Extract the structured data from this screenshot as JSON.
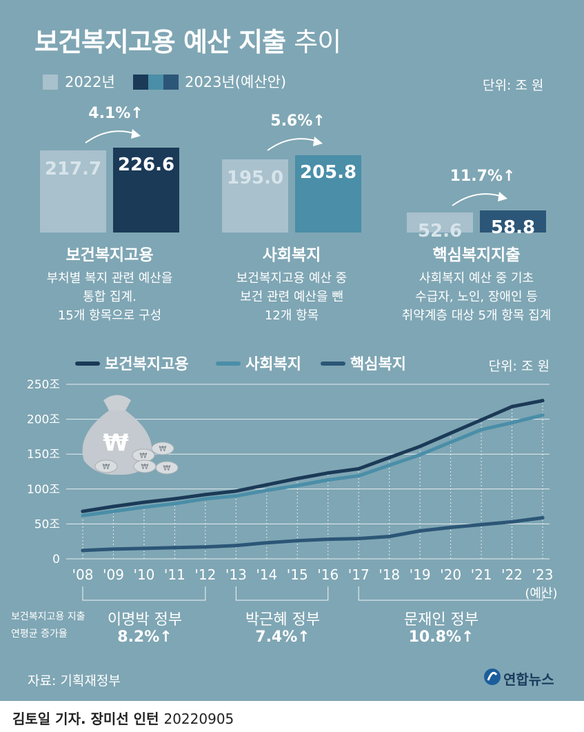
{
  "title": {
    "bold": "보건복지고용 예산 지출",
    "light": "추이"
  },
  "bar_legend": {
    "label_2022": "2022년",
    "label_2023": "2023년(예산안)"
  },
  "bar_unit": "단위: 조 원",
  "colors": {
    "background": "#7fa6b4",
    "bar_2022": "#a8c1cd",
    "health": "#1b3a57",
    "social": "#4a8ea8",
    "core": "#2c5677",
    "white": "#ffffff"
  },
  "bar_groups": [
    {
      "name": "보건복지고용",
      "desc": [
        "부처별 복지 관련 예산을",
        "통합 집계.",
        "15개 항목으로 구성"
      ],
      "v2022": 217.7,
      "v2023": 226.6,
      "v2022_label": "217.7",
      "v2023_label": "226.6",
      "change": "4.1%↑",
      "color_key": "health"
    },
    {
      "name": "사회복지",
      "desc": [
        "보건복지고용 예산 중",
        "보건 관련 예산을 뺀",
        "12개 항목"
      ],
      "v2022": 195.0,
      "v2023": 205.8,
      "v2022_label": "195.0",
      "v2023_label": "205.8",
      "change": "5.6%↑",
      "color_key": "social"
    },
    {
      "name": "핵심복지지출",
      "desc": [
        "사회복지 예산 중 기초",
        "수급자, 노인, 장애인 등",
        "취약계층 대상 5개 항목 집계"
      ],
      "v2022": 52.6,
      "v2023": 58.8,
      "v2022_label": "52.6",
      "v2023_label": "58.8",
      "change": "11.7%↑",
      "color_key": "core"
    }
  ],
  "chart_data": {
    "type": "line",
    "legend": [
      "보건복지고용",
      "사회복지",
      "핵심복지"
    ],
    "unit": "단위: 조 원",
    "x": [
      "'08",
      "'09",
      "'10",
      "'11",
      "'12",
      "'13",
      "'14",
      "'15",
      "'16",
      "'17",
      "'18",
      "'19",
      "'20",
      "'21",
      "'22",
      "'23"
    ],
    "x_note": "(예산)",
    "y_ticks": [
      "250조",
      "200조",
      "150조",
      "100조",
      "50조",
      "0"
    ],
    "ylim": [
      0,
      250
    ],
    "series": [
      {
        "name": "보건복지고용",
        "color_key": "health",
        "values": [
          68,
          75,
          81,
          86,
          92,
          97,
          106,
          115,
          123,
          129,
          145,
          161,
          180,
          199,
          218,
          226.6
        ]
      },
      {
        "name": "사회복지",
        "color_key": "social",
        "values": [
          62,
          68,
          74,
          79,
          86,
          90,
          98,
          105,
          113,
          119,
          134,
          149,
          167,
          185,
          195,
          205.8
        ]
      },
      {
        "name": "핵심복지",
        "color_key": "core",
        "values": [
          12,
          14,
          15,
          16,
          17,
          19,
          23,
          26,
          28,
          29,
          32,
          40,
          45,
          49,
          53,
          58.8
        ]
      }
    ],
    "grid": "horizontal"
  },
  "governments": [
    {
      "name": "이명박 정부",
      "rate": "8.2%↑"
    },
    {
      "name": "박근혜 정부",
      "rate": "7.4%↑"
    },
    {
      "name": "문재인 정부",
      "rate": "10.8%↑"
    }
  ],
  "gov_caption": [
    "보건복지고용 지출",
    "연평균 증가율"
  ],
  "source": "자료: 기획재정부",
  "logo_text": "연합뉴스",
  "credit": {
    "names": "김토일 기자. 장미선 인턴",
    "date": "20220905"
  }
}
